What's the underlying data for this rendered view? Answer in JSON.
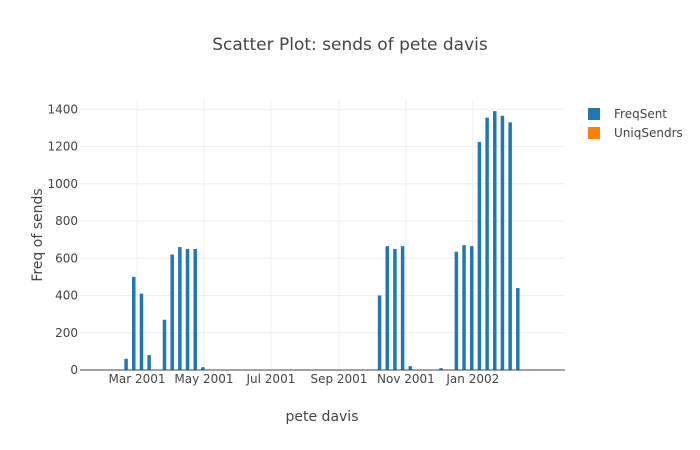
{
  "chart_data": {
    "type": "bar",
    "title": "Scatter Plot: sends of pete davis",
    "xlabel": "pete davis",
    "ylabel": "Freq of sends",
    "ylim": [
      0,
      1450
    ],
    "y_ticks": [
      0,
      200,
      400,
      600,
      800,
      1000,
      1200,
      1400
    ],
    "x_ticks": [
      {
        "date": "2001-03-01",
        "label": "Mar 2001"
      },
      {
        "date": "2001-05-01",
        "label": "May 2001"
      },
      {
        "date": "2001-07-01",
        "label": "Jul 2001"
      },
      {
        "date": "2001-09-01",
        "label": "Sep 2001"
      },
      {
        "date": "2001-11-01",
        "label": "Nov 2001"
      },
      {
        "date": "2002-01-01",
        "label": "Jan 2002"
      }
    ],
    "xlim": [
      "2001-01-08",
      "2002-03-26"
    ],
    "grid": true,
    "legend_position": "top-right",
    "series": [
      {
        "name": "FreqSent",
        "color": "#1f77b4",
        "x": [
          "2001-02-12",
          "2001-02-19",
          "2001-02-26",
          "2001-03-05",
          "2001-03-12",
          "2001-03-19",
          "2001-03-26",
          "2001-04-02",
          "2001-04-09",
          "2001-04-16",
          "2001-04-23",
          "2001-04-30",
          "2001-10-08",
          "2001-10-15",
          "2001-10-22",
          "2001-10-29",
          "2001-11-05",
          "2001-11-12",
          "2001-11-19",
          "2001-11-26",
          "2001-12-03",
          "2001-12-17",
          "2001-12-24",
          "2001-12-31",
          "2002-01-07",
          "2002-01-14",
          "2002-01-21",
          "2002-01-28",
          "2002-02-04",
          "2002-02-11"
        ],
        "values": [
          3,
          60,
          500,
          410,
          80,
          2,
          270,
          620,
          660,
          650,
          650,
          15,
          400,
          665,
          650,
          665,
          20,
          2,
          2,
          2,
          10,
          635,
          670,
          665,
          1225,
          1355,
          1390,
          1365,
          1330,
          440
        ]
      },
      {
        "name": "UniqSendrs",
        "color": "#ff7f0e",
        "x": [],
        "values": []
      }
    ]
  }
}
